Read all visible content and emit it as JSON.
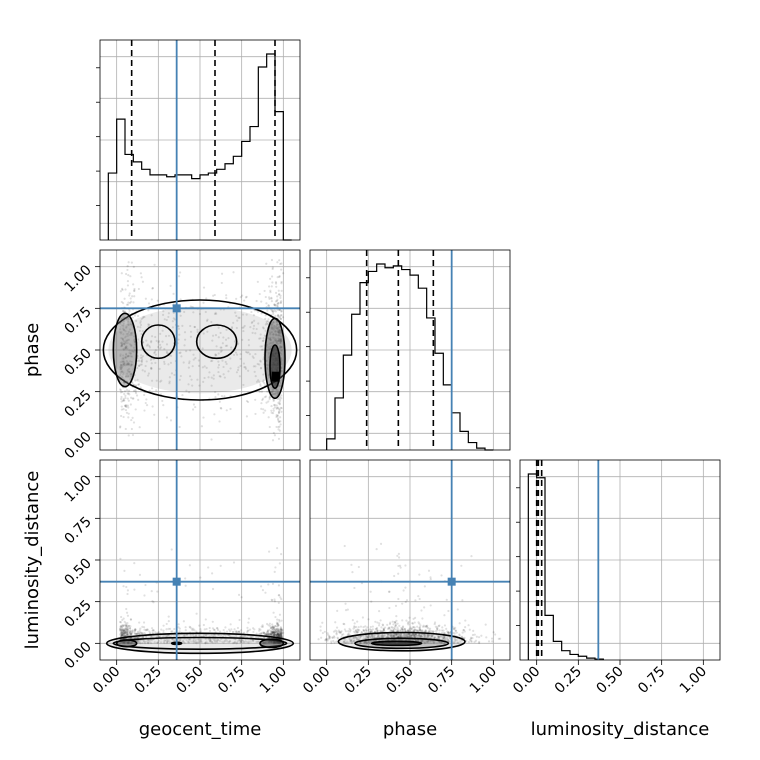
{
  "chart_data": {
    "type": "corner",
    "parameters": [
      "geocent_time",
      "phase",
      "luminosity_distance"
    ],
    "truths": {
      "geocent_time": 0.36,
      "phase": 0.75,
      "luminosity_distance": 0.37
    },
    "quantiles": {
      "geocent_time": [
        0.09,
        0.59,
        0.95
      ],
      "phase": [
        0.24,
        0.43,
        0.64
      ],
      "luminosity_distance": [
        0.0,
        0.01,
        0.03
      ]
    },
    "ranges": {
      "geocent_time": [
        -0.1,
        1.1
      ],
      "phase": [
        -0.1,
        1.1
      ],
      "luminosity_distance": [
        -0.1,
        1.1
      ]
    },
    "ticks": {
      "geocent_time": [
        "0.00",
        "0.25",
        "0.50",
        "0.75",
        "1.00"
      ],
      "phase": [
        "0.00",
        "0.25",
        "0.50",
        "0.75",
        "1.00"
      ],
      "luminosity_distance": [
        "0.00",
        "0.25",
        "0.50",
        "0.75",
        "1.00"
      ]
    },
    "histograms": {
      "geocent_time": {
        "edges": [
          -0.05,
          0.0,
          0.05,
          0.1,
          0.15,
          0.2,
          0.25,
          0.3,
          0.35,
          0.4,
          0.45,
          0.5,
          0.55,
          0.6,
          0.65,
          0.7,
          0.75,
          0.8,
          0.85,
          0.9,
          0.95,
          1.0,
          1.05
        ],
        "counts": [
          0.36,
          0.65,
          0.46,
          0.42,
          0.38,
          0.35,
          0.35,
          0.34,
          0.35,
          0.35,
          0.33,
          0.35,
          0.36,
          0.38,
          0.41,
          0.45,
          0.53,
          0.61,
          0.93,
          1.0,
          0.69,
          0.0
        ]
      },
      "phase": {
        "edges": [
          0.0,
          0.05,
          0.1,
          0.15,
          0.2,
          0.25,
          0.3,
          0.35,
          0.4,
          0.45,
          0.5,
          0.55,
          0.6,
          0.65,
          0.7,
          0.75,
          0.8,
          0.85,
          0.9,
          0.95,
          1.0
        ],
        "counts": [
          0.06,
          0.28,
          0.51,
          0.73,
          0.9,
          0.96,
          1.0,
          0.98,
          0.99,
          0.97,
          0.94,
          0.87,
          0.71,
          0.52,
          0.35,
          0.2,
          0.1,
          0.04,
          0.01,
          0.0
        ]
      },
      "luminosity_distance": {
        "edges": [
          -0.05,
          0.0,
          0.05,
          0.1,
          0.15,
          0.2,
          0.25,
          0.3,
          0.35,
          0.4
        ],
        "counts": [
          1.0,
          0.98,
          0.24,
          0.1,
          0.05,
          0.03,
          0.02,
          0.01,
          0.005
        ]
      }
    }
  }
}
